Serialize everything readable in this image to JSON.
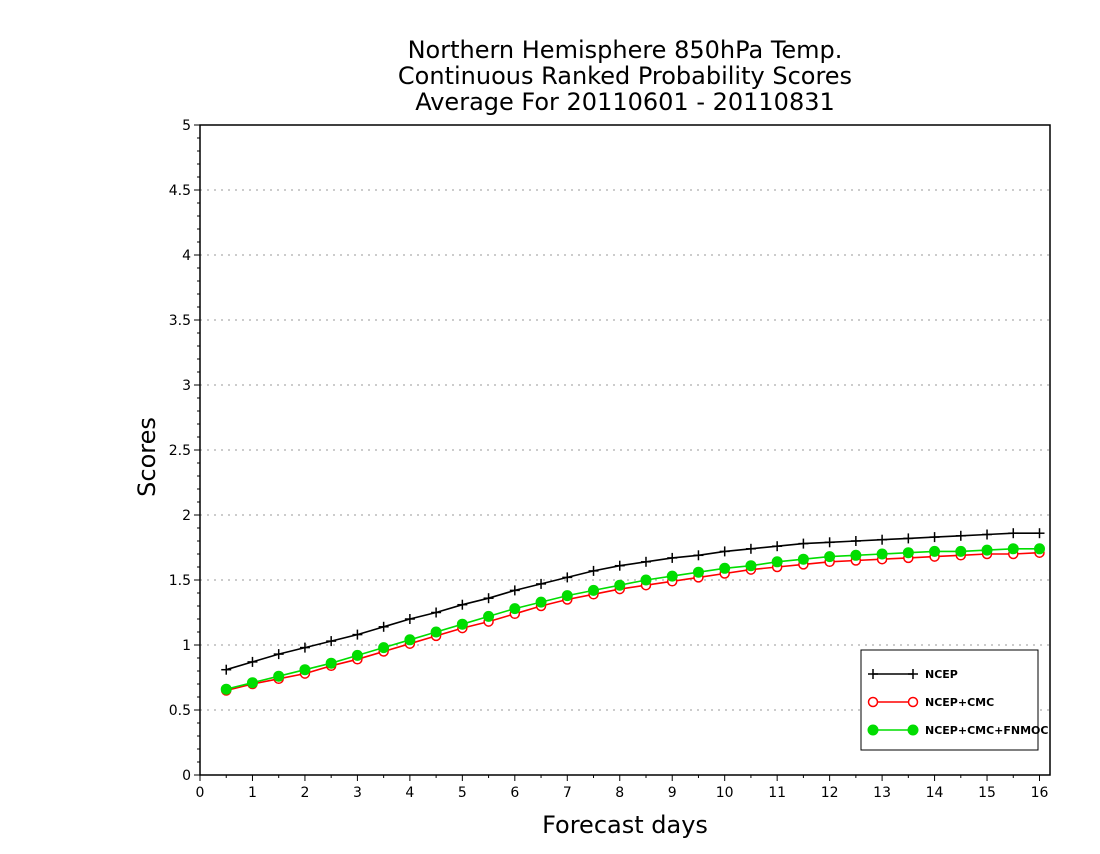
{
  "chart_data": {
    "type": "line",
    "title_lines": [
      "Northern Hemisphere 850hPa Temp.",
      "Continuous Ranked Probability Scores",
      "Average For 20110601 - 20110831"
    ],
    "xlabel": "Forecast days",
    "ylabel": "Scores",
    "xlim": [
      0,
      16.2
    ],
    "ylim": [
      0,
      5
    ],
    "x_ticks": [
      0,
      1,
      2,
      3,
      4,
      5,
      6,
      7,
      8,
      9,
      10,
      11,
      12,
      13,
      14,
      15,
      16
    ],
    "y_ticks": [
      0,
      0.5,
      1,
      1.5,
      2,
      2.5,
      3,
      3.5,
      4,
      4.5,
      5
    ],
    "y_tick_labels": [
      "0",
      "0.5",
      "1",
      "1.5",
      "2",
      "2.5",
      "3",
      "3.5",
      "4",
      "4.5",
      "5"
    ],
    "grid": "horizontal dotted",
    "legend_position": "bottom-right",
    "x": [
      0.5,
      1,
      1.5,
      2,
      2.5,
      3,
      3.5,
      4,
      4.5,
      5,
      5.5,
      6,
      6.5,
      7,
      7.5,
      8,
      8.5,
      9,
      9.5,
      10,
      10.5,
      11,
      11.5,
      12,
      12.5,
      13,
      13.5,
      14,
      14.5,
      15,
      15.5,
      16
    ],
    "series": [
      {
        "name": "NCEP",
        "color": "#000000",
        "marker": "plus",
        "values": [
          0.81,
          0.87,
          0.93,
          0.98,
          1.03,
          1.08,
          1.14,
          1.2,
          1.25,
          1.31,
          1.36,
          1.42,
          1.47,
          1.52,
          1.57,
          1.61,
          1.64,
          1.67,
          1.69,
          1.72,
          1.74,
          1.76,
          1.78,
          1.79,
          1.8,
          1.81,
          1.82,
          1.83,
          1.84,
          1.85,
          1.86,
          1.86
        ]
      },
      {
        "name": "NCEP+CMC",
        "color": "#ff0000",
        "marker": "open-circle",
        "values": [
          0.65,
          0.7,
          0.74,
          0.78,
          0.84,
          0.89,
          0.95,
          1.01,
          1.07,
          1.13,
          1.18,
          1.24,
          1.3,
          1.35,
          1.39,
          1.43,
          1.46,
          1.49,
          1.52,
          1.55,
          1.58,
          1.6,
          1.62,
          1.64,
          1.65,
          1.66,
          1.67,
          1.68,
          1.69,
          1.7,
          1.7,
          1.71
        ]
      },
      {
        "name": "NCEP+CMC+FNMOC",
        "color": "#00dd00",
        "marker": "filled-circle",
        "values": [
          0.66,
          0.71,
          0.76,
          0.81,
          0.86,
          0.92,
          0.98,
          1.04,
          1.1,
          1.16,
          1.22,
          1.28,
          1.33,
          1.38,
          1.42,
          1.46,
          1.5,
          1.53,
          1.56,
          1.59,
          1.61,
          1.64,
          1.66,
          1.68,
          1.69,
          1.7,
          1.71,
          1.72,
          1.72,
          1.73,
          1.74,
          1.74
        ]
      }
    ]
  }
}
